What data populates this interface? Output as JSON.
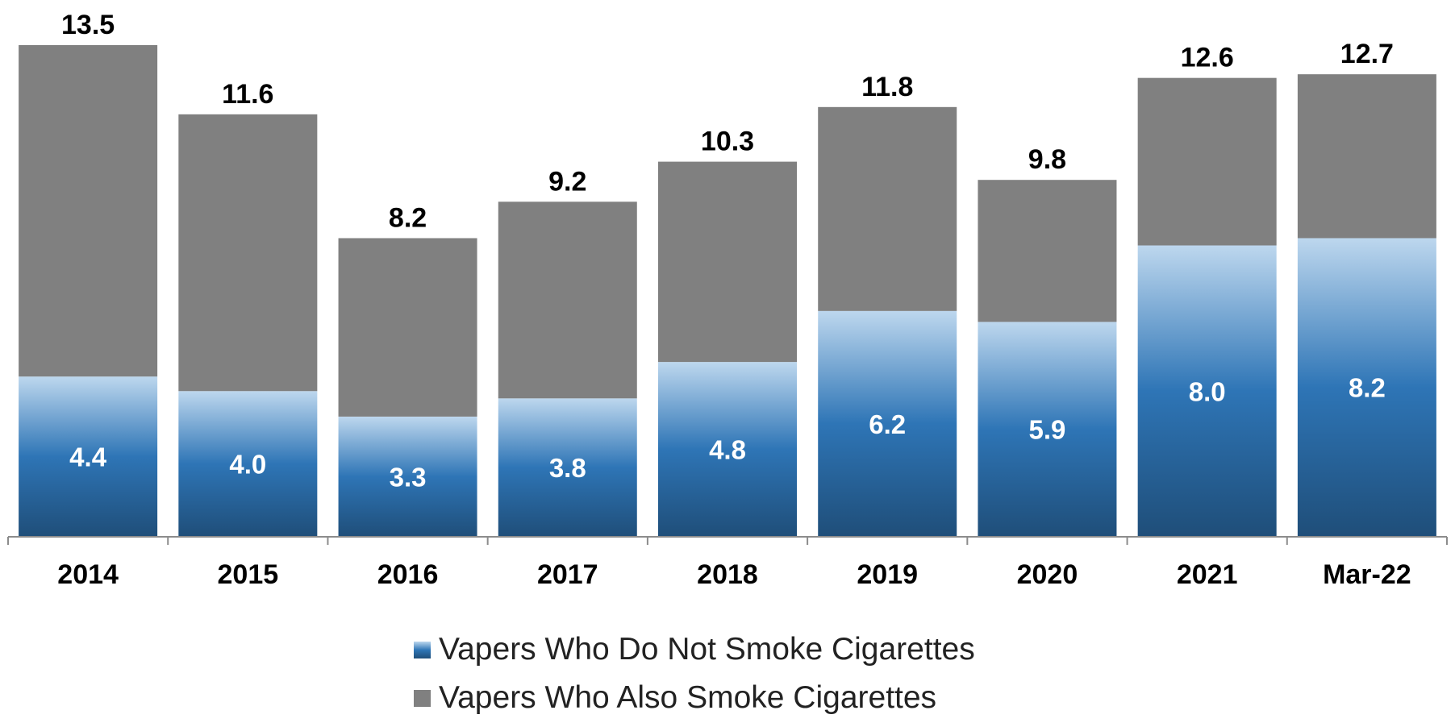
{
  "chart_data": {
    "type": "bar",
    "stacked": true,
    "categories": [
      "2014",
      "2015",
      "2016",
      "2017",
      "2018",
      "2019",
      "2020",
      "2021",
      "Mar-22"
    ],
    "series": [
      {
        "name": "Vapers Who Do Not Smoke Cigarettes",
        "values": [
          4.4,
          4.0,
          3.3,
          3.8,
          4.8,
          6.2,
          5.9,
          8.0,
          8.2
        ],
        "color": "#2e75b6",
        "labels": [
          "4.4",
          "4.0",
          "3.3",
          "3.8",
          "4.8",
          "6.2",
          "5.9",
          "8.0",
          "8.2"
        ]
      },
      {
        "name": "Vapers Who Also Smoke Cigarettes",
        "values": [
          9.1,
          7.6,
          4.9,
          5.4,
          5.5,
          5.6,
          3.9,
          4.6,
          4.5
        ],
        "color": "#808080"
      }
    ],
    "totals": [
      13.5,
      11.6,
      8.2,
      9.2,
      10.3,
      11.8,
      9.8,
      12.6,
      12.7
    ],
    "total_labels": [
      "13.5",
      "11.6",
      "8.2",
      "9.2",
      "10.3",
      "11.8",
      "9.8",
      "12.6",
      "12.7"
    ],
    "ylim": [
      0,
      13.5
    ],
    "grid": false,
    "legend_position": "bottom"
  }
}
